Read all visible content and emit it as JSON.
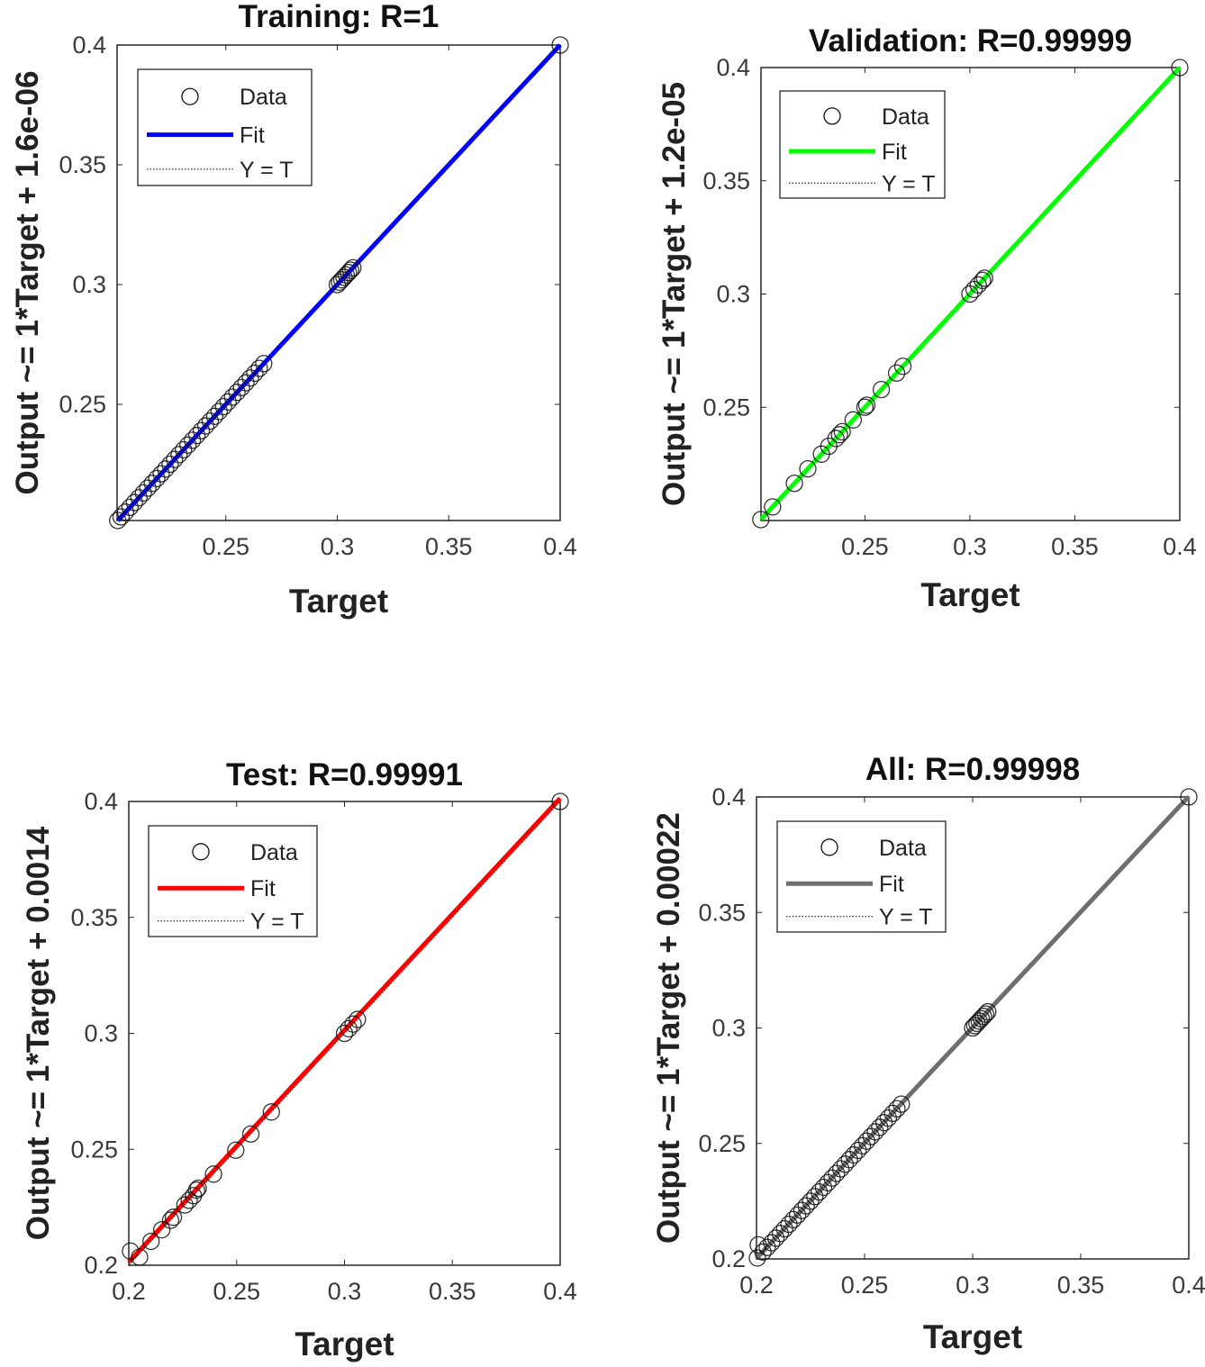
{
  "chart_data": [
    {
      "type": "scatter",
      "title": "Training: R=1",
      "xlabel": "Target",
      "ylabel": "Output ~= 1*Target + 1.6e-06",
      "xlim": [
        0.2012,
        0.4
      ],
      "ylim": [
        0.2015,
        0.4
      ],
      "xticks": [
        "0.25",
        "0.3",
        "0.35",
        "0.4"
      ],
      "yticks": [
        "0.25",
        "0.3",
        "0.35",
        "0.4"
      ],
      "fit": {
        "slope": 1,
        "intercept": 1.6e-06,
        "color": "#0000ff"
      },
      "legend": {
        "position": "top-left",
        "entries": [
          "Data",
          "Fit",
          "Y = T"
        ]
      },
      "grid": false,
      "points": {
        "x": [
          0.2015,
          0.203,
          0.205,
          0.207,
          0.209,
          0.211,
          0.213,
          0.215,
          0.217,
          0.219,
          0.221,
          0.223,
          0.225,
          0.227,
          0.229,
          0.231,
          0.233,
          0.235,
          0.237,
          0.239,
          0.241,
          0.243,
          0.245,
          0.247,
          0.249,
          0.251,
          0.253,
          0.255,
          0.257,
          0.259,
          0.261,
          0.263,
          0.265,
          0.267,
          0.3,
          0.301,
          0.302,
          0.303,
          0.304,
          0.305,
          0.306,
          0.307,
          0.4
        ],
        "y": [
          0.2015,
          0.203,
          0.205,
          0.207,
          0.209,
          0.211,
          0.213,
          0.215,
          0.217,
          0.219,
          0.221,
          0.223,
          0.225,
          0.227,
          0.229,
          0.231,
          0.233,
          0.235,
          0.237,
          0.239,
          0.241,
          0.243,
          0.245,
          0.247,
          0.249,
          0.251,
          0.253,
          0.255,
          0.257,
          0.259,
          0.261,
          0.263,
          0.265,
          0.267,
          0.3,
          0.301,
          0.302,
          0.303,
          0.304,
          0.305,
          0.306,
          0.307,
          0.4
        ]
      }
    },
    {
      "type": "scatter",
      "title": "Validation: R=0.99999",
      "xlabel": "Target",
      "ylabel": "Output ~= 1*Target + 1.2e-05",
      "xlim": [
        0.2005,
        0.4
      ],
      "ylim": [
        0.2,
        0.4
      ],
      "xticks": [
        "0.25",
        "0.3",
        "0.35",
        "0.4"
      ],
      "yticks": [
        "0.25",
        "0.3",
        "0.35",
        "0.4"
      ],
      "fit": {
        "slope": 1,
        "intercept": 1.2e-05,
        "color": "#00ff00"
      },
      "legend": {
        "position": "top-left",
        "entries": [
          "Data",
          "Fit",
          "Y = T"
        ]
      },
      "grid": false,
      "points": {
        "x": [
          0.2004,
          0.206,
          0.2164,
          0.2228,
          0.2293,
          0.2328,
          0.2362,
          0.2379,
          0.2392,
          0.2444,
          0.25,
          0.2509,
          0.2578,
          0.2651,
          0.2681,
          0.3,
          0.302,
          0.304,
          0.306,
          0.307,
          0.4
        ],
        "y": [
          0.2004,
          0.206,
          0.2164,
          0.2228,
          0.2293,
          0.2328,
          0.2362,
          0.2379,
          0.2392,
          0.2444,
          0.25,
          0.2509,
          0.2578,
          0.2651,
          0.2681,
          0.3,
          0.302,
          0.304,
          0.306,
          0.307,
          0.4
        ]
      }
    },
    {
      "type": "scatter",
      "title": "Test: R=0.99991",
      "xlabel": "Target",
      "ylabel": "Output ~= 1*Target + 0.0014",
      "xlim": [
        0.2,
        0.4
      ],
      "ylim": [
        0.2,
        0.4
      ],
      "xticks": [
        "0.2",
        "0.25",
        "0.3",
        "0.35",
        "0.4"
      ],
      "yticks": [
        "0.2",
        "0.25",
        "0.3",
        "0.35",
        "0.4"
      ],
      "fit": {
        "slope": 1,
        "intercept": 0.0014,
        "color": "#ff0000"
      },
      "legend": {
        "position": "top-left",
        "entries": [
          "Data",
          "Fit",
          "Y = T"
        ]
      },
      "grid": false,
      "points": {
        "x": [
          0.2008,
          0.205,
          0.2103,
          0.2153,
          0.2194,
          0.2207,
          0.226,
          0.228,
          0.23,
          0.2314,
          0.2322,
          0.2393,
          0.2496,
          0.2566,
          0.2661,
          0.3,
          0.302,
          0.304,
          0.306,
          0.4
        ],
        "y": [
          0.2061,
          0.2035,
          0.2103,
          0.2153,
          0.2194,
          0.2207,
          0.226,
          0.228,
          0.23,
          0.2324,
          0.2332,
          0.2393,
          0.2496,
          0.2566,
          0.2661,
          0.3,
          0.302,
          0.304,
          0.306,
          0.4
        ]
      }
    },
    {
      "type": "scatter",
      "title": "All: R=0.99998",
      "xlabel": "Target",
      "ylabel": "Output ~= 1*Target + 0.00022",
      "xlim": [
        0.2,
        0.4
      ],
      "ylim": [
        0.2,
        0.4
      ],
      "xticks": [
        "0.2",
        "0.25",
        "0.3",
        "0.35",
        "0.4"
      ],
      "yticks": [
        "0.2",
        "0.25",
        "0.3",
        "0.35",
        "0.4"
      ],
      "fit": {
        "slope": 1,
        "intercept": 0.00022,
        "color": "#6e6e6e"
      },
      "legend": {
        "position": "top-left",
        "entries": [
          "Data",
          "Fit",
          "Y = T"
        ]
      },
      "grid": false,
      "points": {
        "x": [
          0.2004,
          0.2008,
          0.203,
          0.205,
          0.207,
          0.209,
          0.211,
          0.213,
          0.215,
          0.217,
          0.219,
          0.221,
          0.223,
          0.225,
          0.227,
          0.229,
          0.231,
          0.233,
          0.235,
          0.237,
          0.239,
          0.241,
          0.243,
          0.245,
          0.247,
          0.249,
          0.251,
          0.253,
          0.255,
          0.257,
          0.259,
          0.261,
          0.263,
          0.265,
          0.267,
          0.3,
          0.301,
          0.302,
          0.303,
          0.304,
          0.305,
          0.306,
          0.307,
          0.4
        ],
        "y": [
          0.2004,
          0.2061,
          0.203,
          0.205,
          0.207,
          0.209,
          0.211,
          0.213,
          0.215,
          0.217,
          0.219,
          0.221,
          0.223,
          0.225,
          0.227,
          0.229,
          0.231,
          0.233,
          0.235,
          0.237,
          0.239,
          0.241,
          0.243,
          0.245,
          0.247,
          0.249,
          0.251,
          0.253,
          0.255,
          0.257,
          0.259,
          0.261,
          0.263,
          0.265,
          0.267,
          0.3,
          0.301,
          0.302,
          0.303,
          0.304,
          0.305,
          0.306,
          0.307,
          0.4
        ]
      }
    }
  ]
}
